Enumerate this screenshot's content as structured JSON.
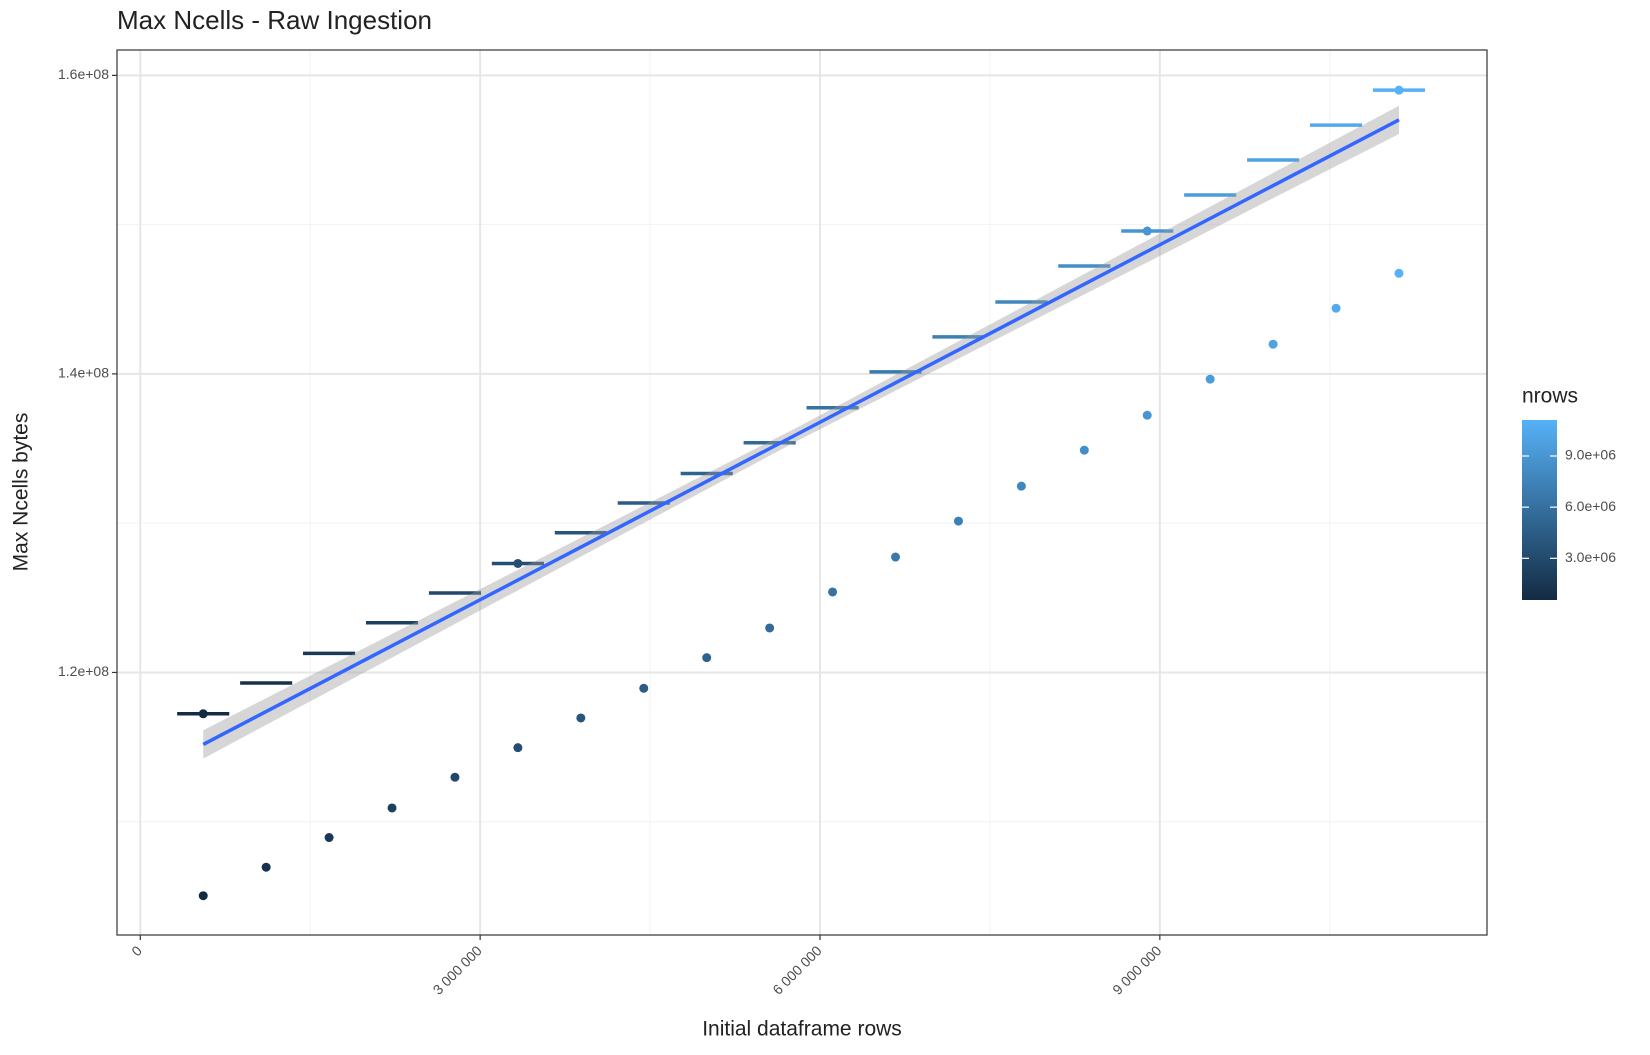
{
  "chart_data": {
    "type": "scatter",
    "title": "Max Ncells - Raw Ingestion",
    "x_label": "Initial dataframe rows",
    "y_label": "Max Ncells bytes",
    "xlim": [
      -205607,
      11888000
    ],
    "ylim": [
      102410000,
      161700000
    ],
    "xticks": [
      0,
      {
        "value": 3000000,
        "label": "3 000 000"
      },
      {
        "value": 6000000,
        "label": "6 000 000"
      },
      {
        "value": 9000000,
        "label": "9 000 000"
      }
    ],
    "xticks_minor": [
      1500000,
      4500000,
      7500000,
      10500000
    ],
    "yticks": [
      {
        "value": 120000000,
        "label": "1.2e+08"
      },
      {
        "value": 140000000,
        "label": "1.4e+08"
      },
      {
        "value": 160000000,
        "label": "1.6e+08"
      }
    ],
    "yticks_minor": [
      110000000,
      130000000,
      150000000
    ],
    "grid": true,
    "legend": {
      "title": "nrows",
      "position": "right",
      "colorlim": [
        555556,
        11111111
      ],
      "low_color": "#132B43",
      "high_color": "#56B1F7",
      "ticks": [
        {
          "value": 3000000,
          "label": "3.0e+06"
        },
        {
          "value": 6000000,
          "label": "6.0e+06"
        },
        {
          "value": 9000000,
          "label": "9.0e+06"
        }
      ]
    },
    "series": [
      {
        "mark": "point",
        "x": [
          555556,
          1111111,
          1666667,
          2222222,
          2777778,
          3333333,
          3888889,
          4444444,
          5000000,
          5555556,
          6111111,
          6666667,
          7222222,
          7777778,
          8333333,
          8888889,
          9444444,
          10000000,
          10555556,
          11111111
        ],
        "values": [
          105040000,
          106950000,
          108940000,
          110920000,
          112980000,
          114960000,
          116950000,
          118940000,
          120990000,
          122980000,
          125390000,
          127730000,
          130140000,
          132480000,
          134890000,
          137230000,
          139650000,
          141990000,
          144400000,
          146740000
        ]
      },
      {
        "mark": "dash",
        "x": [
          555556,
          1111111,
          1666667,
          2222222,
          2777778,
          3333333,
          3888889,
          4444444,
          5000000,
          5555556,
          6111111,
          6666667,
          7222222,
          7777778,
          8333333,
          8888889,
          9444444,
          10000000,
          10555556,
          11111111
        ],
        "values": [
          117230000,
          119290000,
          121280000,
          123330000,
          125320000,
          127300000,
          129360000,
          131350000,
          133330000,
          135390000,
          137730000,
          140140000,
          142480000,
          144820000,
          147230000,
          149570000,
          151990000,
          154330000,
          156670000,
          159010000
        ]
      },
      {
        "mark": "point",
        "x": [
          555556,
          3333333,
          8888889,
          11111111
        ],
        "values": [
          117230000,
          127300000,
          149570000,
          159010000
        ]
      }
    ],
    "fit": {
      "color": "#3366FF",
      "band_color": "#999999",
      "x": [
        555556,
        5833333,
        11111111
      ],
      "values": [
        115180000,
        136100000,
        157020000
      ],
      "lower": [
        114230000,
        135650000,
        156070000
      ],
      "upper": [
        116130000,
        136550000,
        157970000
      ]
    }
  }
}
